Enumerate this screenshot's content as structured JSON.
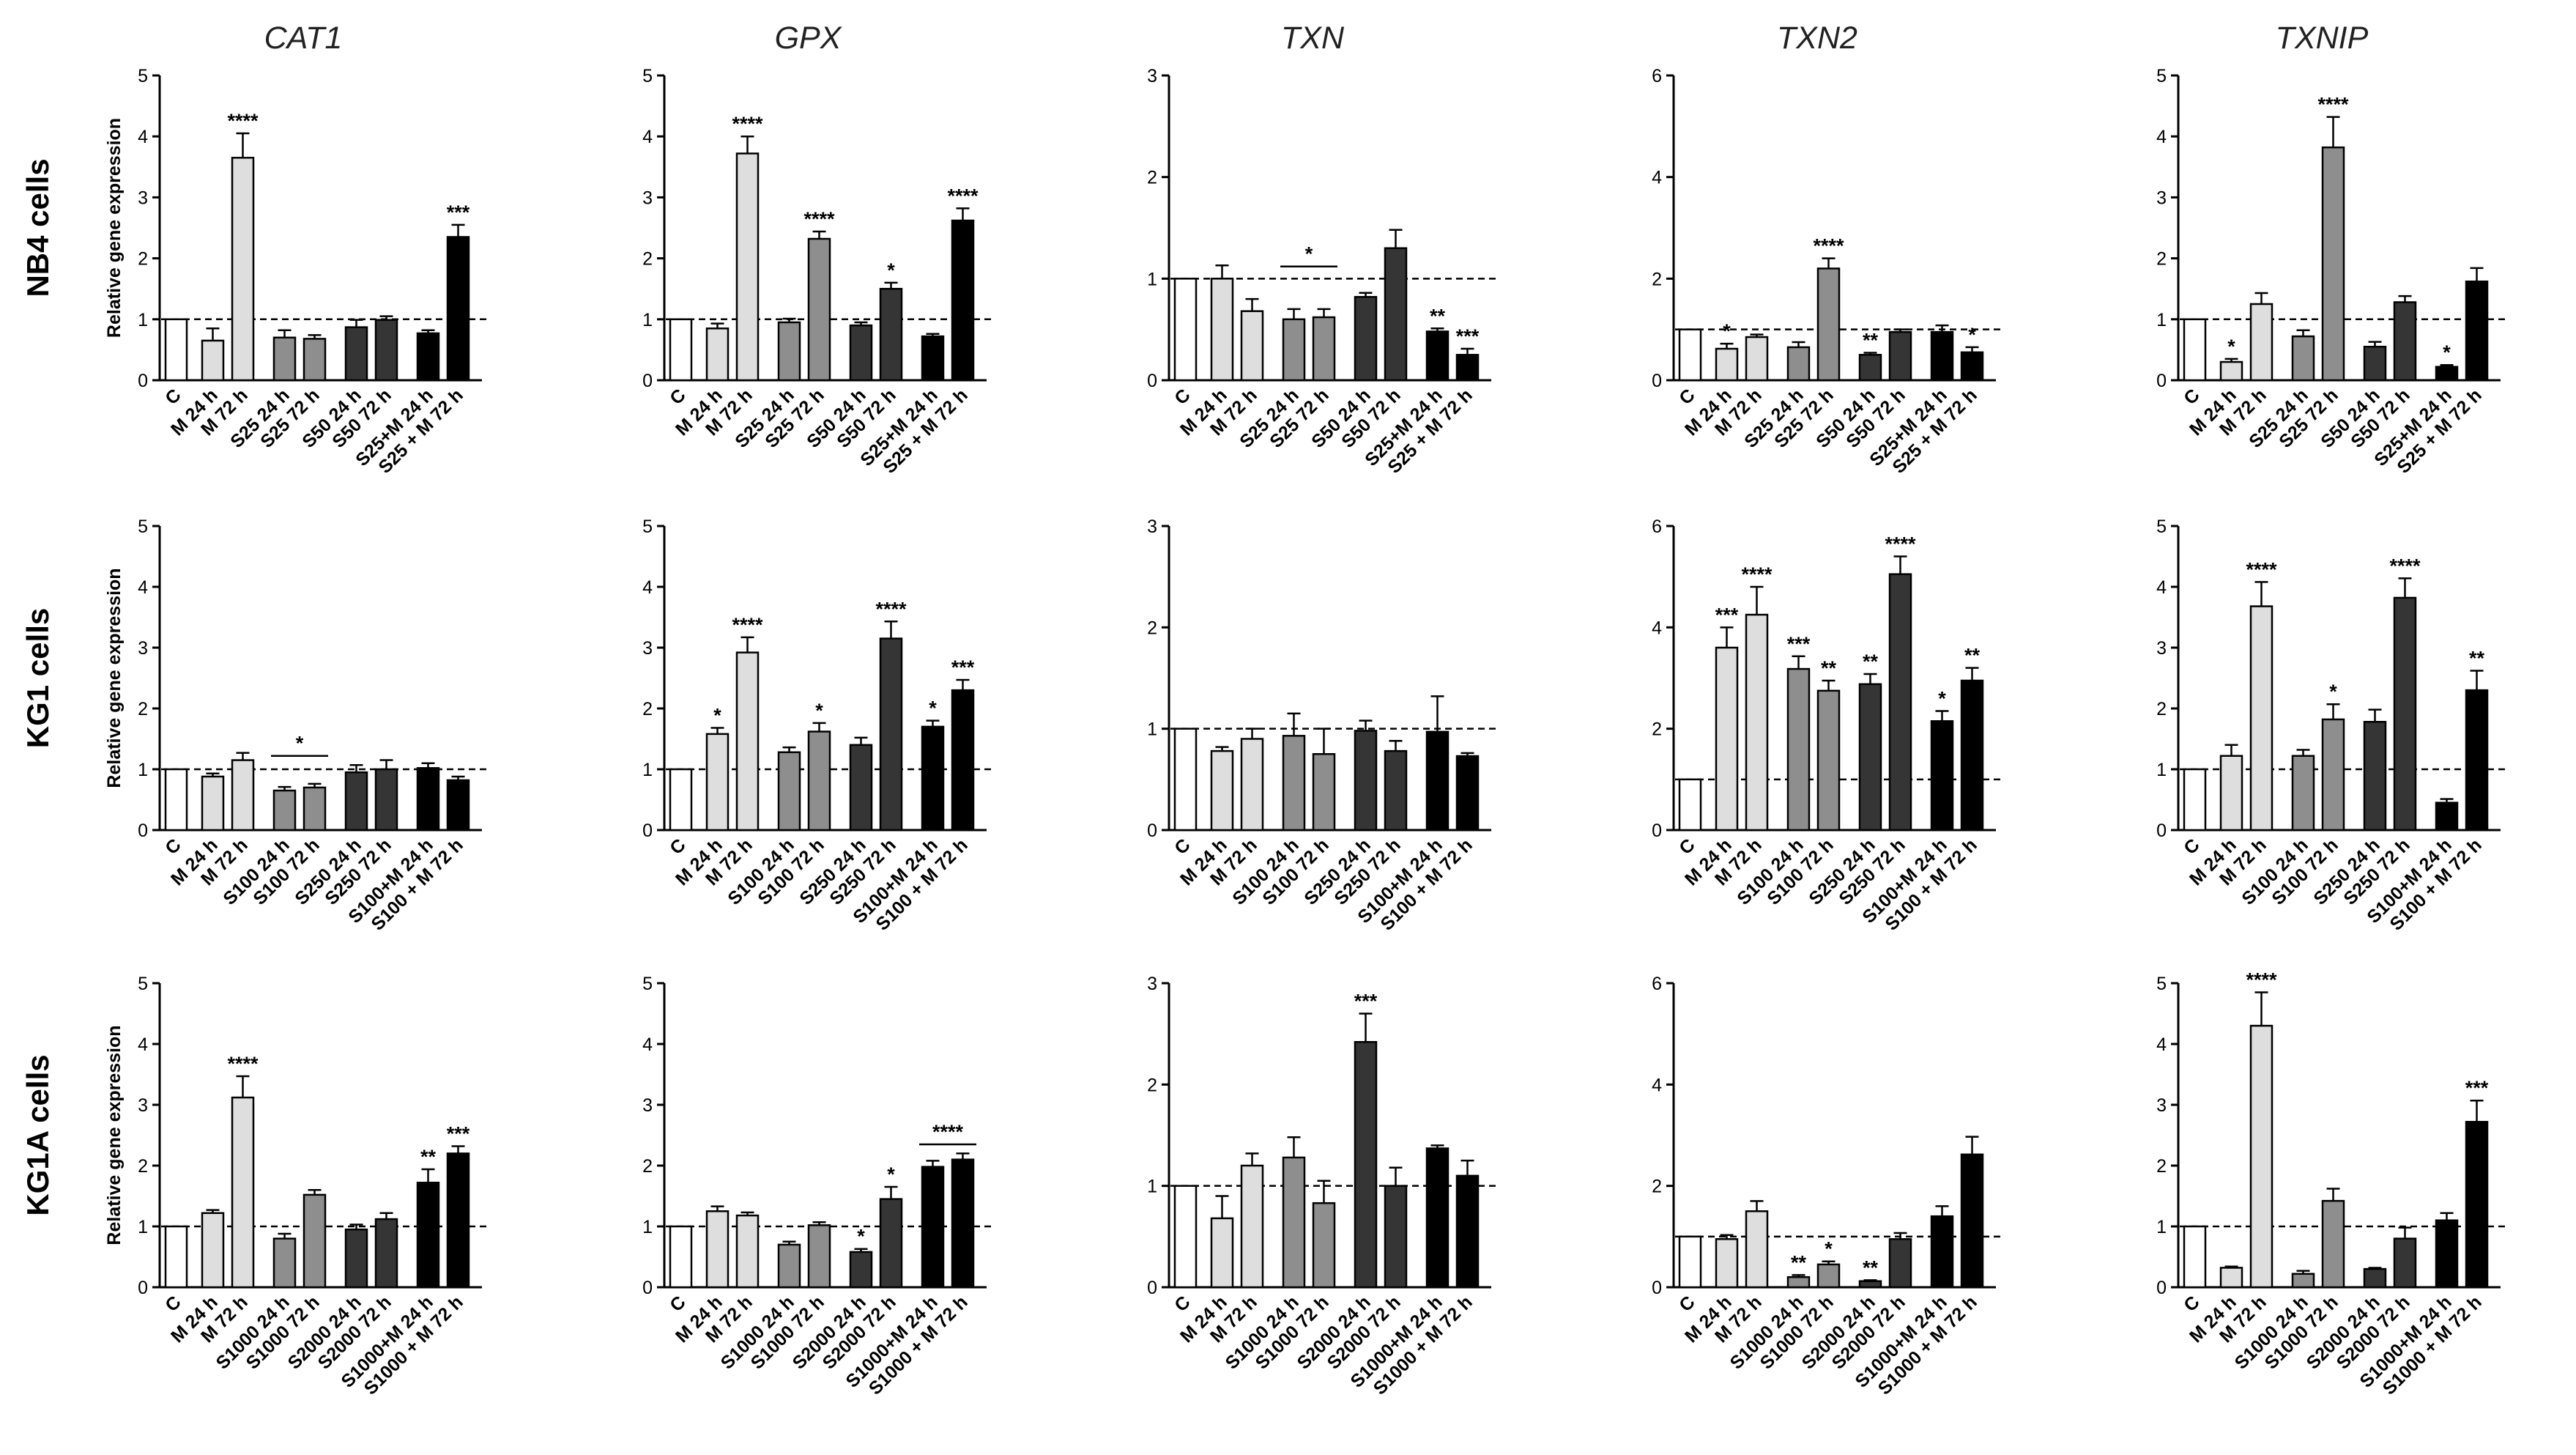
{
  "chart_data": {
    "type": "bar",
    "title": "",
    "ylabel": "Relative gene expression",
    "reference_value": 1,
    "genes": [
      "CAT1",
      "GPX",
      "TXN",
      "TXN2",
      "TXNIP"
    ],
    "colors": [
      "#ffffff",
      "#dedede",
      "#dedede",
      "#8e8e8e",
      "#8e8e8e",
      "#353535",
      "#353535",
      "#000000",
      "#000000"
    ],
    "rows": [
      {
        "label": "NB4 cells",
        "categories": [
          "C",
          "M 24 h",
          "M 72 h",
          "S25 24 h",
          "S25 72 h",
          "S50 24 h",
          "S50 72 h",
          "S25+M 24 h",
          "S25 + M 72 h"
        ],
        "panels": [
          {
            "gene": "CAT1",
            "ylim": [
              0,
              5
            ],
            "yticks": [
              0,
              1,
              2,
              3,
              4,
              5
            ],
            "values": [
              1.0,
              0.65,
              3.65,
              0.7,
              0.68,
              0.87,
              0.99,
              0.77,
              2.35
            ],
            "errors": [
              0.0,
              0.2,
              0.4,
              0.12,
              0.06,
              0.12,
              0.06,
              0.05,
              0.2
            ],
            "sig": [
              "",
              "",
              "****",
              "",
              "",
              "",
              "",
              "",
              "***"
            ],
            "brackets": []
          },
          {
            "gene": "GPX",
            "ylim": [
              0,
              5
            ],
            "yticks": [
              0,
              1,
              2,
              3,
              4,
              5
            ],
            "values": [
              1.0,
              0.85,
              3.72,
              0.95,
              2.32,
              0.9,
              1.5,
              0.72,
              2.62
            ],
            "errors": [
              0.0,
              0.08,
              0.28,
              0.06,
              0.12,
              0.05,
              0.1,
              0.04,
              0.2
            ],
            "sig": [
              "",
              "",
              "****",
              "",
              "****",
              "",
              "*",
              "",
              "****"
            ],
            "brackets": []
          },
          {
            "gene": "TXN",
            "ylim": [
              0,
              3
            ],
            "yticks": [
              0,
              1,
              2,
              3
            ],
            "values": [
              1.0,
              1.0,
              0.68,
              0.6,
              0.62,
              0.82,
              1.3,
              0.48,
              0.25
            ],
            "errors": [
              0.0,
              0.13,
              0.12,
              0.1,
              0.08,
              0.04,
              0.18,
              0.03,
              0.06
            ],
            "sig": [
              "",
              "",
              "",
              "",
              "",
              "",
              "",
              "**",
              "***"
            ],
            "brackets": [
              {
                "from": 3,
                "to": 4,
                "label": "*",
                "y": 1.12
              }
            ]
          },
          {
            "gene": "TXN2",
            "ylim": [
              0,
              6
            ],
            "yticks": [
              0,
              2,
              4,
              6
            ],
            "values": [
              1.0,
              0.62,
              0.85,
              0.65,
              2.2,
              0.5,
              0.95,
              0.95,
              0.55
            ],
            "errors": [
              0.0,
              0.1,
              0.05,
              0.1,
              0.2,
              0.04,
              0.05,
              0.13,
              0.1
            ],
            "sig": [
              "",
              "*",
              "",
              "",
              "****",
              "**",
              "",
              "",
              "*"
            ],
            "brackets": []
          },
          {
            "gene": "TXNIP",
            "ylim": [
              0,
              5
            ],
            "yticks": [
              0,
              1,
              2,
              3,
              4,
              5
            ],
            "values": [
              1.0,
              0.3,
              1.25,
              0.72,
              3.82,
              0.55,
              1.28,
              0.22,
              1.62
            ],
            "errors": [
              0.0,
              0.05,
              0.18,
              0.1,
              0.5,
              0.08,
              0.1,
              0.03,
              0.22
            ],
            "sig": [
              "",
              "*",
              "",
              "",
              "****",
              "",
              "",
              "*",
              ""
            ],
            "brackets": []
          }
        ]
      },
      {
        "label": "KG1 cells",
        "categories": [
          "C",
          "M 24 h",
          "M 72 h",
          "S100 24 h",
          "S100 72 h",
          "S250 24 h",
          "S250 72 h",
          "S100+M 24 h",
          "S100 + M 72 h"
        ],
        "panels": [
          {
            "gene": "CAT1",
            "ylim": [
              0,
              5
            ],
            "yticks": [
              0,
              1,
              2,
              3,
              4,
              5
            ],
            "values": [
              1.0,
              0.88,
              1.15,
              0.65,
              0.7,
              0.95,
              1.0,
              1.02,
              0.82
            ],
            "errors": [
              0.0,
              0.05,
              0.12,
              0.06,
              0.06,
              0.12,
              0.15,
              0.08,
              0.06
            ],
            "sig": [
              "",
              "",
              "",
              "",
              "",
              "",
              "",
              "",
              ""
            ],
            "brackets": [
              {
                "from": 3,
                "to": 4,
                "label": "*",
                "y": 1.22
              }
            ]
          },
          {
            "gene": "GPX",
            "ylim": [
              0,
              5
            ],
            "yticks": [
              0,
              1,
              2,
              3,
              4,
              5
            ],
            "values": [
              1.0,
              1.58,
              2.92,
              1.28,
              1.62,
              1.4,
              3.15,
              1.7,
              2.3
            ],
            "errors": [
              0.0,
              0.1,
              0.25,
              0.08,
              0.14,
              0.12,
              0.28,
              0.1,
              0.17
            ],
            "sig": [
              "",
              "*",
              "****",
              "",
              "*",
              "",
              "****",
              "*",
              "***"
            ],
            "brackets": []
          },
          {
            "gene": "TXN",
            "ylim": [
              0,
              3
            ],
            "yticks": [
              0,
              1,
              2,
              3
            ],
            "values": [
              1.0,
              0.78,
              0.9,
              0.93,
              0.75,
              0.98,
              0.78,
              0.97,
              0.73
            ],
            "errors": [
              0.0,
              0.04,
              0.1,
              0.22,
              0.25,
              0.1,
              0.1,
              0.35,
              0.03
            ],
            "sig": [
              "",
              "",
              "",
              "",
              "",
              "",
              "",
              "",
              ""
            ],
            "brackets": []
          },
          {
            "gene": "TXN2",
            "ylim": [
              0,
              6
            ],
            "yticks": [
              0,
              2,
              4,
              6
            ],
            "values": [
              1.0,
              3.6,
              4.25,
              3.18,
              2.75,
              2.88,
              5.05,
              2.15,
              2.95
            ],
            "errors": [
              0.0,
              0.4,
              0.55,
              0.25,
              0.2,
              0.2,
              0.35,
              0.2,
              0.25
            ],
            "sig": [
              "",
              "***",
              "****",
              "***",
              "**",
              "**",
              "****",
              "*",
              "**"
            ],
            "brackets": []
          },
          {
            "gene": "TXNIP",
            "ylim": [
              0,
              5
            ],
            "yticks": [
              0,
              1,
              2,
              3,
              4,
              5
            ],
            "values": [
              1.0,
              1.22,
              3.68,
              1.22,
              1.82,
              1.78,
              3.82,
              0.45,
              2.3
            ],
            "errors": [
              0.0,
              0.18,
              0.4,
              0.1,
              0.25,
              0.2,
              0.32,
              0.06,
              0.32
            ],
            "sig": [
              "",
              "",
              "****",
              "",
              "*",
              "",
              "****",
              "",
              "**"
            ],
            "brackets": []
          }
        ]
      },
      {
        "label": "KG1A cells",
        "categories": [
          "C",
          "M 24 h",
          "M 72 h",
          "S1000 24 h",
          "S1000 72 h",
          "S2000 24 h",
          "S2000 72 h",
          "S1000+M 24 h",
          "S1000 + M 72 h"
        ],
        "panels": [
          {
            "gene": "CAT1",
            "ylim": [
              0,
              5
            ],
            "yticks": [
              0,
              1,
              2,
              3,
              4,
              5
            ],
            "values": [
              1.0,
              1.22,
              3.12,
              0.8,
              1.52,
              0.95,
              1.12,
              1.72,
              2.2
            ],
            "errors": [
              0.0,
              0.05,
              0.35,
              0.08,
              0.08,
              0.08,
              0.1,
              0.22,
              0.12
            ],
            "sig": [
              "",
              "",
              "****",
              "",
              "",
              "",
              "",
              "**",
              "***"
            ],
            "brackets": []
          },
          {
            "gene": "GPX",
            "ylim": [
              0,
              5
            ],
            "yticks": [
              0,
              1,
              2,
              3,
              4,
              5
            ],
            "values": [
              1.0,
              1.25,
              1.18,
              0.7,
              1.02,
              0.58,
              1.45,
              1.98,
              2.1
            ],
            "errors": [
              0.0,
              0.08,
              0.05,
              0.05,
              0.05,
              0.05,
              0.2,
              0.1,
              0.1
            ],
            "sig": [
              "",
              "",
              "",
              "",
              "",
              "*",
              "*",
              "",
              ""
            ],
            "brackets": [
              {
                "from": 7,
                "to": 8,
                "label": "****",
                "y": 2.35
              }
            ]
          },
          {
            "gene": "TXN",
            "ylim": [
              0,
              3
            ],
            "yticks": [
              0,
              1,
              2,
              3
            ],
            "values": [
              1.0,
              0.68,
              1.2,
              1.28,
              0.83,
              2.42,
              1.0,
              1.37,
              1.1
            ],
            "errors": [
              0.0,
              0.22,
              0.12,
              0.2,
              0.22,
              0.28,
              0.18,
              0.03,
              0.15
            ],
            "sig": [
              "",
              "",
              "",
              "",
              "",
              "***",
              "",
              "",
              ""
            ],
            "brackets": []
          },
          {
            "gene": "TXN2",
            "ylim": [
              0,
              6
            ],
            "yticks": [
              0,
              2,
              4,
              6
            ],
            "values": [
              1.0,
              0.95,
              1.5,
              0.2,
              0.45,
              0.12,
              0.95,
              1.4,
              2.62
            ],
            "errors": [
              0.0,
              0.08,
              0.2,
              0.04,
              0.06,
              0.02,
              0.12,
              0.2,
              0.35
            ],
            "sig": [
              "",
              "",
              "",
              "**",
              "*",
              "**",
              "",
              "",
              ""
            ],
            "brackets": []
          },
          {
            "gene": "TXNIP",
            "ylim": [
              0,
              5
            ],
            "yticks": [
              0,
              1,
              2,
              3,
              4,
              5
            ],
            "values": [
              1.0,
              0.32,
              4.3,
              0.22,
              1.42,
              0.3,
              0.8,
              1.1,
              2.72
            ],
            "errors": [
              0.0,
              0.02,
              0.55,
              0.05,
              0.2,
              0.02,
              0.18,
              0.12,
              0.35
            ],
            "sig": [
              "",
              "",
              "****",
              "",
              "",
              "",
              "",
              "",
              "***"
            ],
            "brackets": []
          }
        ]
      }
    ]
  }
}
